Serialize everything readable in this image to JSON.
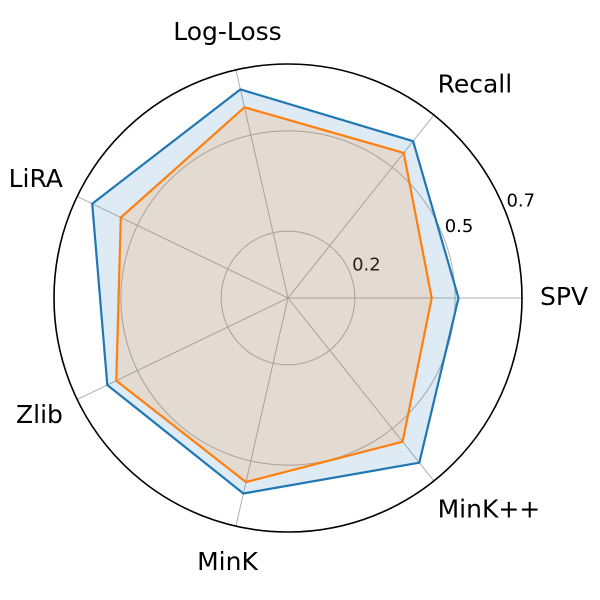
{
  "chart_data": {
    "type": "radar",
    "categories": [
      "SPV",
      "Recall",
      "Log-Loss",
      "LiRA",
      "Zlib",
      "MinK",
      "MinK++"
    ],
    "series": [
      {
        "color": "#1f77b4",
        "values": [
          0.51,
          0.6,
          0.64,
          0.65,
          0.6,
          0.6,
          0.63
        ]
      },
      {
        "color": "#ff7f0e",
        "values": [
          0.43,
          0.555,
          0.585,
          0.555,
          0.57,
          0.565,
          0.55
        ]
      }
    ],
    "ylim": [
      0,
      0.7
    ],
    "yticks": [
      0.2,
      0.5,
      0.7
    ],
    "grid": true
  }
}
